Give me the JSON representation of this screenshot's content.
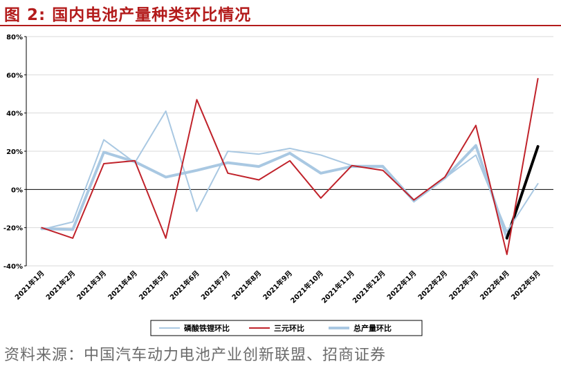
{
  "figure": {
    "title": "图 2:  国内电池产量种类环比情况",
    "source_prefix": "资料来源：",
    "source_text": "中国汽车动力电池产业创新联盟、招商证券"
  },
  "chart_data": {
    "type": "line",
    "title": "",
    "xlabel": "",
    "ylabel": "",
    "categories": [
      "2021年1月",
      "2021年2月",
      "2021年3月",
      "2021年4月",
      "2021年5月",
      "2021年6月",
      "2021年7月",
      "2021年8月",
      "2021年9月",
      "2021年10月",
      "2021年11月",
      "2021年12月",
      "2022年1月",
      "2022年2月",
      "2022年3月",
      "2022年4月",
      "2022年5月"
    ],
    "ylim": [
      -40,
      80
    ],
    "yticks": [
      -40,
      -20,
      0,
      20,
      40,
      60,
      80
    ],
    "ytick_labels": [
      "-40%",
      "-20%",
      "0%",
      "20%",
      "40%",
      "60%",
      "80%"
    ],
    "grid": true,
    "legend_position": "bottom",
    "series": [
      {
        "name": "磷酸铁锂环比",
        "color": "#a9c8e2",
        "width": "thin",
        "values": [
          -21,
          -17,
          26,
          14,
          41,
          -11.5,
          20,
          18.5,
          21.5,
          18,
          12.5,
          12.5,
          -6.5,
          6,
          18,
          -22,
          3
        ]
      },
      {
        "name": "三元环比",
        "color": "#c0222a",
        "width": "normal",
        "values": [
          -20,
          -25.5,
          13.5,
          15,
          -25.5,
          47,
          8.5,
          5,
          15,
          -4.5,
          12.5,
          10,
          -5.5,
          6.5,
          33.5,
          -34,
          58
        ]
      },
      {
        "name": "总产量环比",
        "color": "#a9c8e2",
        "width": "thick",
        "values": [
          -20.5,
          -21,
          19.5,
          14.5,
          6.5,
          10,
          14,
          12,
          19,
          8.5,
          12,
          12,
          -6,
          6,
          23,
          -25.5,
          22.5
        ],
        "highlight_last_segment_color": "#000000"
      }
    ]
  }
}
